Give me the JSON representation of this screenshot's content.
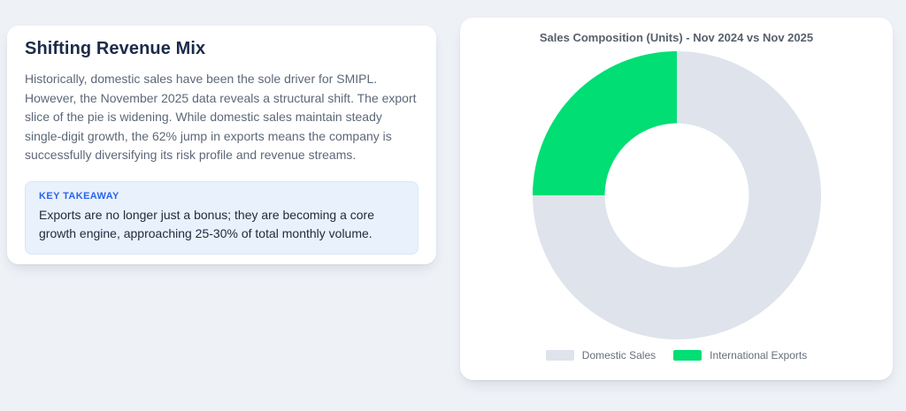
{
  "page": {
    "background_color": "#eef1f6"
  },
  "left_card": {
    "title": "Shifting Revenue Mix",
    "paragraph": "Historically, domestic sales have been the sole driver for SMIPL. However, the November 2025 data reveals a structural shift. The export slice of the pie is widening. While domestic sales maintain steady single-digit growth, the 62% jump in exports means the company is successfully diversifying its risk profile and revenue streams.",
    "takeaway": {
      "label": "KEY TAKEAWAY",
      "text": "Exports are no longer just a bonus; they are becoming a core growth engine, approaching 25-30% of total monthly volume.",
      "label_color": "#2b63ea",
      "background_color": "#e9f1fd"
    }
  },
  "chart_data": {
    "type": "pie",
    "variant": "doughnut",
    "title": "Sales Composition (Units) - Nov 2024 vs Nov 2025",
    "categories": [
      "Domestic Sales",
      "International Exports"
    ],
    "values": [
      75,
      25
    ],
    "value_note": "estimated % share of donut; no numeric data labels shown in chart",
    "colors": [
      "#dee3ec",
      "#00de74"
    ],
    "cutout_percent": 50,
    "rotation_deg": 0,
    "direction": "clockwise",
    "legend_position": "bottom",
    "title_color": "#57606c",
    "legend_text_color": "#666e78"
  }
}
